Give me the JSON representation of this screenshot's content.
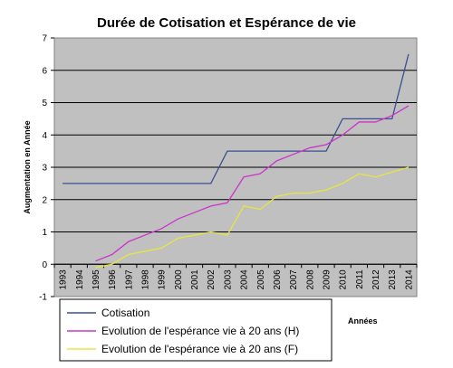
{
  "chart_data": {
    "type": "line",
    "title": "Durée de Cotisation et Espérance de vie",
    "xlabel": "Années",
    "ylabel": "Augmentation en Année",
    "ylim": [
      -1,
      7
    ],
    "yticks": [
      -1,
      0,
      1,
      2,
      3,
      4,
      5,
      6,
      7
    ],
    "grid": true,
    "legend_position": "bottom",
    "categories": [
      "1993",
      "1994",
      "1995",
      "1996",
      "1997",
      "1998",
      "1999",
      "2000",
      "2001",
      "2002",
      "2003",
      "2004",
      "2005",
      "2006",
      "2007",
      "2008",
      "2009",
      "2010",
      "2011",
      "2012",
      "2013",
      "2014"
    ],
    "series": [
      {
        "name": "Cotisation",
        "color": "#3a4f8c",
        "values": [
          2.5,
          2.5,
          2.5,
          2.5,
          2.5,
          2.5,
          2.5,
          2.5,
          2.5,
          2.5,
          3.5,
          3.5,
          3.5,
          3.5,
          3.5,
          3.5,
          3.5,
          4.5,
          4.5,
          4.5,
          4.5,
          6.5
        ]
      },
      {
        "name": "Evolution de l'espérance vie à 20 ans (H)",
        "color": "#cc33cc",
        "values": [
          null,
          null,
          0.1,
          0.3,
          0.7,
          0.9,
          1.1,
          1.4,
          1.6,
          1.8,
          1.9,
          2.7,
          2.8,
          3.2,
          3.4,
          3.6,
          3.7,
          4.0,
          4.4,
          4.4,
          4.6,
          4.9
        ]
      },
      {
        "name": "Evolution de l'espérance vie à 20 ans (F)",
        "color": "#e6e640",
        "values": [
          null,
          null,
          -0.1,
          0.0,
          0.3,
          0.4,
          0.5,
          0.8,
          0.9,
          1.0,
          0.9,
          1.8,
          1.7,
          2.1,
          2.2,
          2.2,
          2.3,
          2.5,
          2.8,
          2.7,
          2.85,
          3.0
        ]
      }
    ]
  }
}
